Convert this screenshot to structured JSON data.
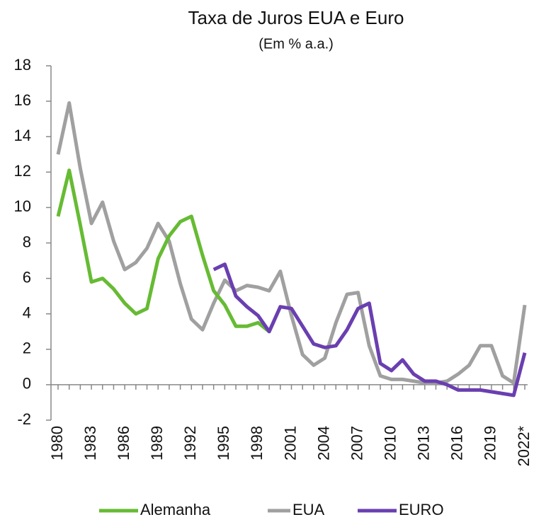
{
  "chart_data": {
    "type": "line",
    "title": "Taxa de Juros EUA e Euro",
    "subtitle": "(Em % a.a.)",
    "categories": [
      "1980",
      null,
      null,
      "1983",
      null,
      null,
      "1986",
      null,
      null,
      "1989",
      null,
      null,
      "1992",
      null,
      null,
      "1995",
      null,
      null,
      "1998",
      null,
      null,
      "2001",
      null,
      null,
      "2004",
      null,
      null,
      "2007",
      null,
      null,
      "2010",
      null,
      null,
      "2013",
      null,
      null,
      "2016",
      null,
      null,
      "2019",
      null,
      null,
      "2022*"
    ],
    "series": [
      {
        "name": "Alemanha",
        "color": "#66bb33",
        "values": [
          9.5,
          12.1,
          9.0,
          5.8,
          6.0,
          5.4,
          4.6,
          4.0,
          4.3,
          7.1,
          8.4,
          9.2,
          9.5,
          7.3,
          5.3,
          4.5,
          3.3,
          3.3,
          3.5,
          3.0,
          null,
          null,
          null,
          null,
          null,
          null,
          null,
          null,
          null,
          null,
          null,
          null,
          null,
          null,
          null,
          null,
          null,
          null,
          null,
          null,
          null,
          null,
          null
        ]
      },
      {
        "name": "EUA",
        "color": "#a0a0a0",
        "values": [
          13.0,
          15.9,
          12.2,
          9.1,
          10.3,
          8.1,
          6.5,
          6.9,
          7.7,
          9.1,
          8.1,
          5.7,
          3.7,
          3.1,
          4.6,
          5.9,
          5.3,
          5.6,
          5.5,
          5.3,
          6.4,
          3.9,
          1.7,
          1.1,
          1.5,
          3.5,
          5.1,
          5.2,
          2.2,
          0.5,
          0.3,
          0.3,
          0.2,
          0.1,
          0.1,
          0.2,
          0.6,
          1.1,
          2.2,
          2.2,
          0.5,
          0.1,
          4.5
        ]
      },
      {
        "name": "EURO",
        "color": "#6a3fb0",
        "values": [
          null,
          null,
          null,
          null,
          null,
          null,
          null,
          null,
          null,
          null,
          null,
          null,
          null,
          null,
          6.5,
          6.8,
          5.0,
          4.4,
          3.9,
          3.0,
          4.4,
          4.3,
          3.3,
          2.3,
          2.1,
          2.2,
          3.1,
          4.3,
          4.6,
          1.2,
          0.8,
          1.4,
          0.6,
          0.2,
          0.2,
          0.0,
          -0.3,
          -0.3,
          -0.3,
          -0.4,
          -0.5,
          -0.6,
          1.8
        ]
      }
    ],
    "ylim": [
      -2,
      18
    ],
    "yticks": [
      -2,
      0,
      2,
      4,
      6,
      8,
      10,
      12,
      14,
      16,
      18
    ],
    "grid": false,
    "legend": "bottom"
  }
}
